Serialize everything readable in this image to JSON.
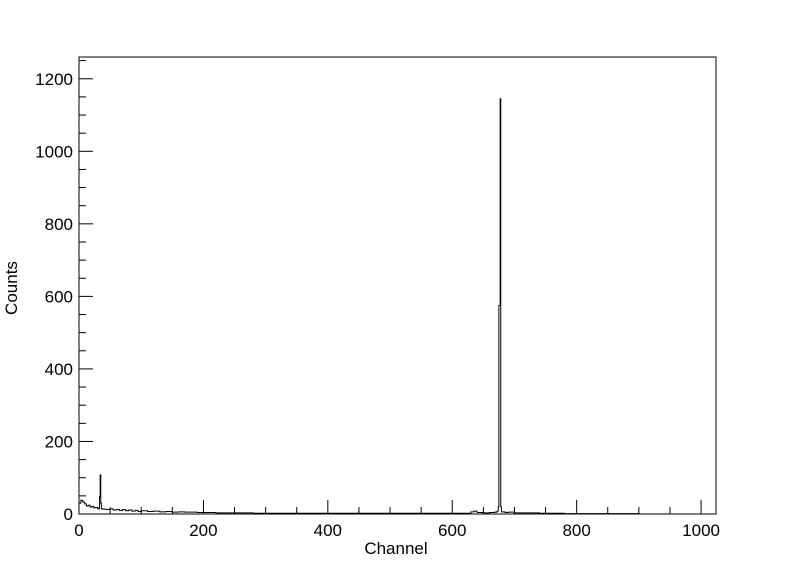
{
  "chart_data": {
    "type": "line",
    "title": "",
    "xlabel": "Channel",
    "ylabel": "Counts",
    "xlim": [
      0,
      1024
    ],
    "ylim": [
      0,
      1260
    ],
    "x_ticks": [
      0,
      200,
      400,
      600,
      800,
      1000
    ],
    "y_ticks": [
      0,
      200,
      400,
      600,
      800,
      1000,
      1200
    ],
    "grid": false,
    "legend": "none",
    "line_color": "#000000",
    "series": [
      {
        "values": [
          {
            "x": 0,
            "y": 30
          },
          {
            "x": 3,
            "y": 38
          },
          {
            "x": 6,
            "y": 33
          },
          {
            "x": 9,
            "y": 28
          },
          {
            "x": 12,
            "y": 22
          },
          {
            "x": 15,
            "y": 24
          },
          {
            "x": 18,
            "y": 19
          },
          {
            "x": 21,
            "y": 21
          },
          {
            "x": 24,
            "y": 17
          },
          {
            "x": 27,
            "y": 18
          },
          {
            "x": 30,
            "y": 14
          },
          {
            "x": 32,
            "y": 16
          },
          {
            "x": 33,
            "y": 48
          },
          {
            "x": 34,
            "y": 108
          },
          {
            "x": 35,
            "y": 30
          },
          {
            "x": 36,
            "y": 14
          },
          {
            "x": 40,
            "y": 13
          },
          {
            "x": 45,
            "y": 12
          },
          {
            "x": 50,
            "y": 14
          },
          {
            "x": 55,
            "y": 11
          },
          {
            "x": 60,
            "y": 12
          },
          {
            "x": 65,
            "y": 10
          },
          {
            "x": 70,
            "y": 12
          },
          {
            "x": 75,
            "y": 9
          },
          {
            "x": 80,
            "y": 11
          },
          {
            "x": 85,
            "y": 8
          },
          {
            "x": 90,
            "y": 10
          },
          {
            "x": 95,
            "y": 7
          },
          {
            "x": 100,
            "y": 9
          },
          {
            "x": 110,
            "y": 7
          },
          {
            "x": 120,
            "y": 8
          },
          {
            "x": 130,
            "y": 6
          },
          {
            "x": 140,
            "y": 7
          },
          {
            "x": 150,
            "y": 5
          },
          {
            "x": 160,
            "y": 6
          },
          {
            "x": 170,
            "y": 5
          },
          {
            "x": 180,
            "y": 5
          },
          {
            "x": 190,
            "y": 4
          },
          {
            "x": 200,
            "y": 4
          },
          {
            "x": 220,
            "y": 3
          },
          {
            "x": 240,
            "y": 3
          },
          {
            "x": 260,
            "y": 3
          },
          {
            "x": 280,
            "y": 2
          },
          {
            "x": 300,
            "y": 2
          },
          {
            "x": 320,
            "y": 2
          },
          {
            "x": 340,
            "y": 2
          },
          {
            "x": 360,
            "y": 2
          },
          {
            "x": 380,
            "y": 2
          },
          {
            "x": 400,
            "y": 2
          },
          {
            "x": 420,
            "y": 2
          },
          {
            "x": 440,
            "y": 2
          },
          {
            "x": 460,
            "y": 2
          },
          {
            "x": 480,
            "y": 2
          },
          {
            "x": 500,
            "y": 2
          },
          {
            "x": 520,
            "y": 2
          },
          {
            "x": 540,
            "y": 2
          },
          {
            "x": 560,
            "y": 2
          },
          {
            "x": 580,
            "y": 2
          },
          {
            "x": 600,
            "y": 2
          },
          {
            "x": 620,
            "y": 2
          },
          {
            "x": 630,
            "y": 6
          },
          {
            "x": 635,
            "y": 8
          },
          {
            "x": 640,
            "y": 4
          },
          {
            "x": 650,
            "y": 3
          },
          {
            "x": 660,
            "y": 4
          },
          {
            "x": 668,
            "y": 5
          },
          {
            "x": 672,
            "y": 8
          },
          {
            "x": 674,
            "y": 20
          },
          {
            "x": 675,
            "y": 575
          },
          {
            "x": 676,
            "y": 575
          },
          {
            "x": 677,
            "y": 1145
          },
          {
            "x": 678,
            "y": 20
          },
          {
            "x": 679,
            "y": 6
          },
          {
            "x": 685,
            "y": 4
          },
          {
            "x": 690,
            "y": 5
          },
          {
            "x": 700,
            "y": 3
          },
          {
            "x": 720,
            "y": 3
          },
          {
            "x": 740,
            "y": 2
          },
          {
            "x": 760,
            "y": 2
          },
          {
            "x": 780,
            "y": 1
          },
          {
            "x": 800,
            "y": 1
          },
          {
            "x": 850,
            "y": 1
          },
          {
            "x": 900,
            "y": 0
          },
          {
            "x": 950,
            "y": 0
          },
          {
            "x": 1000,
            "y": 0
          },
          {
            "x": 1024,
            "y": 0
          }
        ]
      }
    ]
  }
}
